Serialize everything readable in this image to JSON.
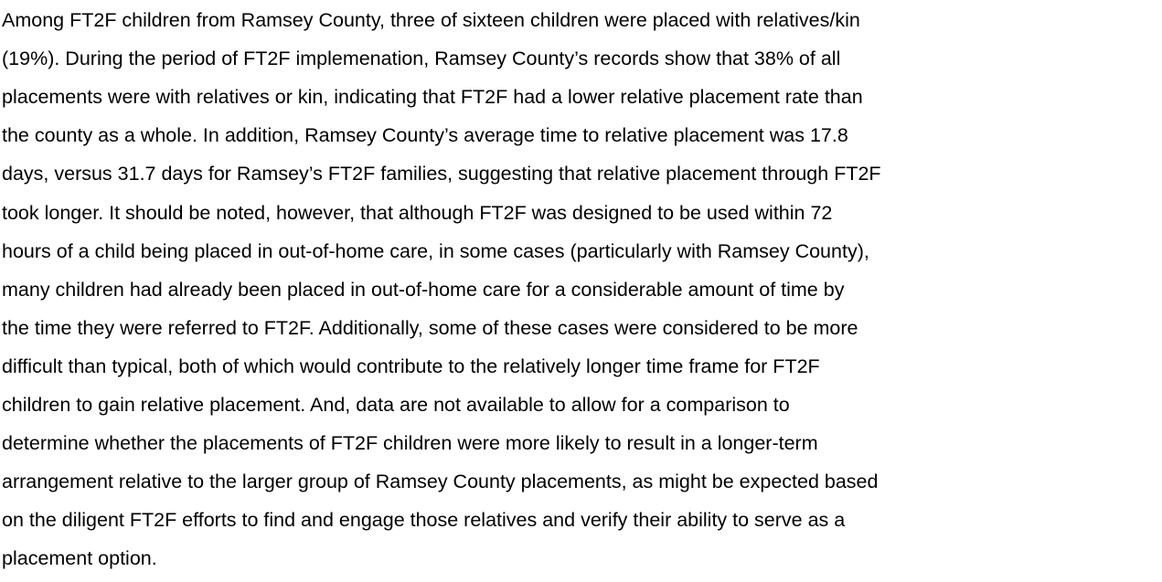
{
  "paragraph": {
    "lines": [
      "Among FT2F children from Ramsey County, three of sixteen children were placed with relatives/kin",
      "(19%). During the period of FT2F implemenation, Ramsey County’s records show that 38% of all",
      "placements were with relatives or kin, indicating that FT2F had a lower relative placement rate than",
      "the county as a whole. In addition, Ramsey County’s average time to relative placement was 17.8",
      "days, versus 31.7 days for Ramsey’s FT2F families, suggesting that relative placement through FT2F",
      "took longer. It should be noted, however, that although FT2F was designed to be used within 72",
      "hours of a child being placed in out-of-home care, in some cases (particularly with Ramsey County),",
      "many children had already been placed in out-of-home care for a considerable amount of time by",
      "the time they were referred to FT2F. Additionally, some of these cases were considered to be more",
      "difficult than typical, both of which would contribute to the relatively longer time frame for FT2F",
      "children to gain relative placement. And, data are not available to allow for a comparison to",
      "determine whether the placements of FT2F children were more likely to result in a longer-term",
      "arrangement relative to the larger group of Ramsey County placements, as might be expected based",
      "on the diligent FT2F efforts to find and engage those relatives and verify their ability to serve as a",
      "placement option."
    ]
  }
}
